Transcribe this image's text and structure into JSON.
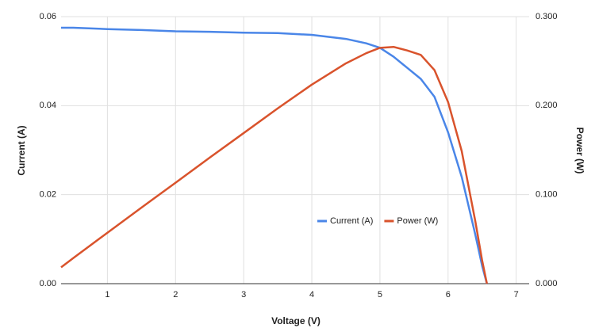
{
  "chart_data": {
    "type": "line",
    "x_label": "Voltage (V)",
    "y_label": "Current (A)",
    "y2_label": "Power (W)",
    "x": [
      0.32,
      0.5,
      1,
      1.5,
      2,
      2.5,
      3,
      3.5,
      4,
      4.5,
      4.8,
      5,
      5.2,
      5.4,
      5.6,
      5.8,
      6.0,
      6.2,
      6.4,
      6.5,
      6.57
    ],
    "series": [
      {
        "name": "Current (A)",
        "color": "#4a86e8",
        "axis": "y",
        "values": [
          0.0575,
          0.0575,
          0.0572,
          0.057,
          0.0567,
          0.0566,
          0.0564,
          0.0563,
          0.0559,
          0.055,
          0.054,
          0.053,
          0.051,
          0.0485,
          0.046,
          0.042,
          0.034,
          0.024,
          0.011,
          0.004,
          0.0
        ]
      },
      {
        "name": "Power (W)",
        "color": "#d9532c",
        "axis": "y2",
        "values": [
          0.0184,
          0.0288,
          0.0572,
          0.0855,
          0.1134,
          0.1415,
          0.1692,
          0.197,
          0.2236,
          0.2475,
          0.259,
          0.265,
          0.266,
          0.262,
          0.257,
          0.24,
          0.204,
          0.149,
          0.07,
          0.026,
          0.0
        ]
      }
    ],
    "xlim": [
      0.32,
      7.19
    ],
    "xticks": [
      1,
      2,
      3,
      4,
      5,
      6,
      7
    ],
    "ylim": [
      0,
      0.06
    ],
    "yticks": [
      {
        "value": 0,
        "label": "0.00"
      },
      {
        "value": 0.02,
        "label": "0.02"
      },
      {
        "value": 0.04,
        "label": "0.04"
      },
      {
        "value": 0.06,
        "label": "0.06"
      }
    ],
    "y2lim": [
      0,
      0.3
    ],
    "y2ticks": [
      {
        "value": 0,
        "label": "0.000"
      },
      {
        "value": 0.1,
        "label": "0.100"
      },
      {
        "value": 0.2,
        "label": "0.200"
      },
      {
        "value": 0.3,
        "label": "0.300"
      }
    ],
    "grid": true,
    "legend": "inside-center"
  }
}
